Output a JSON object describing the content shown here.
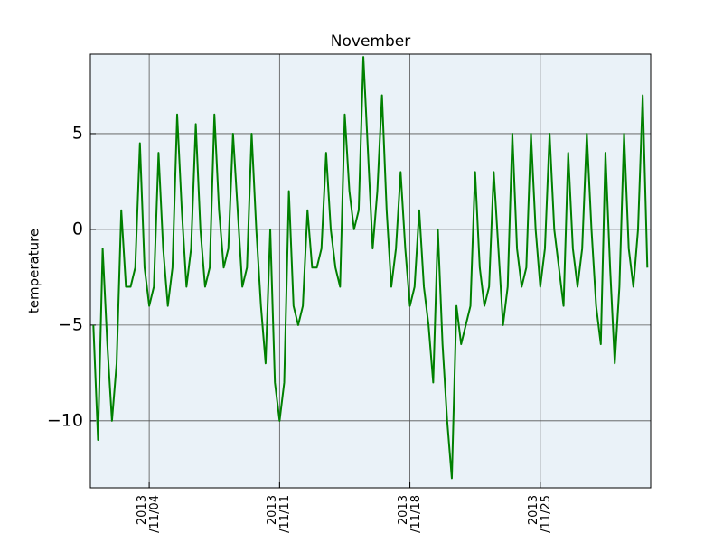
{
  "chart_data": {
    "type": "line",
    "title": "November",
    "y_label": "temperature",
    "color": "#008000",
    "grid": true,
    "xlim": [
      0.84,
      30.93
    ],
    "ylim": [
      -13.5,
      9.15
    ],
    "xticks": [
      {
        "value": 4,
        "label": "2013\n/11/04"
      },
      {
        "value": 11,
        "label": "2013\n/11/11"
      },
      {
        "value": 18,
        "label": "2013\n/11/18"
      },
      {
        "value": 25,
        "label": "2013\n/11/25"
      }
    ],
    "yticks": [
      {
        "value": -10,
        "label": "−10"
      },
      {
        "value": -5,
        "label": "−5"
      },
      0,
      5
    ],
    "x": [
      1,
      1.25,
      1.5,
      1.75,
      2,
      2.25,
      2.5,
      2.75,
      3,
      3.25,
      3.5,
      3.75,
      4,
      4.25,
      4.5,
      4.75,
      5,
      5.25,
      5.5,
      5.75,
      6,
      6.25,
      6.5,
      6.75,
      7,
      7.25,
      7.5,
      7.75,
      8,
      8.25,
      8.5,
      8.75,
      9,
      9.25,
      9.5,
      9.75,
      10,
      10.25,
      10.5,
      10.75,
      11,
      11.25,
      11.5,
      11.75,
      12,
      12.25,
      12.5,
      12.75,
      13,
      13.25,
      13.5,
      13.75,
      14,
      14.25,
      14.5,
      14.75,
      15,
      15.25,
      15.5,
      15.75,
      16,
      16.25,
      16.5,
      16.75,
      17,
      17.25,
      17.5,
      17.75,
      18,
      18.25,
      18.5,
      18.75,
      19,
      19.25,
      19.5,
      19.75,
      20,
      20.25,
      20.5,
      20.75,
      21,
      21.25,
      21.5,
      21.75,
      22,
      22.25,
      22.5,
      22.75,
      23,
      23.25,
      23.5,
      23.75,
      24,
      24.25,
      24.5,
      24.75,
      25,
      25.25,
      25.5,
      25.75,
      26,
      26.25,
      26.5,
      26.75,
      27,
      27.25,
      27.5,
      27.75,
      28,
      28.25,
      28.5,
      28.75,
      29,
      29.25,
      29.5,
      29.75,
      30,
      30.25,
      30.5,
      30.75
    ],
    "values": [
      -5,
      -11,
      -1,
      -6,
      -10,
      -7,
      1,
      -3,
      -3,
      -2,
      4.5,
      -2,
      -4,
      -3,
      4,
      -1,
      -4,
      -2,
      6,
      1,
      -3,
      -1,
      5.5,
      0,
      -3,
      -2,
      6,
      1,
      -2,
      -1,
      5,
      1,
      -3,
      -2,
      5,
      0,
      -4,
      -7,
      0,
      -8,
      -10,
      -8,
      2,
      -4,
      -5,
      -4,
      1,
      -2,
      -2,
      -1,
      4,
      0,
      -2,
      -3,
      6,
      2,
      0,
      1,
      9,
      4,
      -1,
      2,
      7,
      1,
      -3,
      -1,
      3,
      -1,
      -4,
      -3,
      1,
      -3,
      -5,
      -8,
      0,
      -6,
      -10,
      -13,
      -4,
      -6,
      -5,
      -4,
      3,
      -2,
      -4,
      -3,
      3,
      -1,
      -5,
      -3,
      5,
      -1,
      -3,
      -2,
      5,
      0,
      -3,
      -1,
      5,
      0,
      -2,
      -4,
      4,
      -1,
      -3,
      -1,
      5,
      0,
      -4,
      -6,
      4,
      -2,
      -7,
      -3,
      5,
      -1,
      -3,
      0,
      7,
      -2
    ]
  }
}
